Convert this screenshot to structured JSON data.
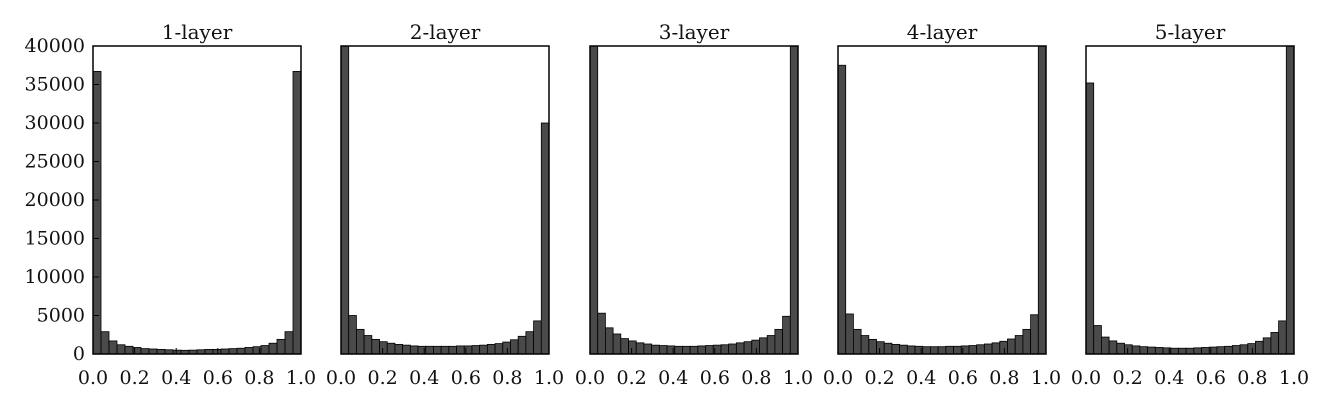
{
  "chart_data": {
    "type": "bar",
    "y_ticks": [
      "0",
      "5000",
      "10000",
      "15000",
      "20000",
      "25000",
      "30000",
      "35000",
      "40000"
    ],
    "x_ticks": [
      "0.0",
      "0.2",
      "0.4",
      "0.6",
      "0.8",
      "1.0"
    ],
    "panels": [
      {
        "title": "1-layer",
        "xlim": [
          0,
          1
        ],
        "ylim": [
          0,
          40000
        ],
        "bin_width": 0.04,
        "values": [
          36700,
          2900,
          1700,
          1200,
          1000,
          850,
          700,
          650,
          600,
          550,
          500,
          480,
          500,
          550,
          600,
          600,
          650,
          700,
          750,
          850,
          950,
          1100,
          1400,
          1900,
          2900,
          36700
        ]
      },
      {
        "title": "2-layer",
        "xlim": [
          0,
          1
        ],
        "ylim": [
          0,
          40000
        ],
        "bin_width": 0.04,
        "values": [
          40000,
          5000,
          3200,
          2400,
          1900,
          1600,
          1400,
          1250,
          1150,
          1050,
          1000,
          1000,
          1000,
          1000,
          1000,
          1050,
          1050,
          1100,
          1150,
          1250,
          1350,
          1550,
          1850,
          2300,
          2900,
          4300,
          30000
        ]
      },
      {
        "title": "3-layer",
        "xlim": [
          0,
          1
        ],
        "ylim": [
          0,
          40000
        ],
        "bin_width": 0.04,
        "values": [
          40000,
          5300,
          3400,
          2600,
          2000,
          1700,
          1450,
          1300,
          1150,
          1100,
          1050,
          1000,
          1000,
          1000,
          1050,
          1100,
          1150,
          1200,
          1300,
          1450,
          1600,
          1800,
          2100,
          2400,
          3200,
          4900,
          40000
        ]
      },
      {
        "title": "4-layer",
        "xlim": [
          0,
          1
        ],
        "ylim": [
          0,
          40000
        ],
        "bin_width": 0.04,
        "values": [
          37500,
          5200,
          3200,
          2400,
          1900,
          1600,
          1400,
          1250,
          1150,
          1050,
          1000,
          950,
          950,
          950,
          1000,
          1000,
          1050,
          1100,
          1200,
          1300,
          1450,
          1650,
          1950,
          2400,
          3200,
          5100,
          40000
        ]
      },
      {
        "title": "5-layer",
        "xlim": [
          0,
          1
        ],
        "ylim": [
          0,
          40000
        ],
        "bin_width": 0.04,
        "values": [
          35200,
          3700,
          2200,
          1700,
          1400,
          1200,
          1050,
          950,
          900,
          850,
          800,
          750,
          750,
          750,
          800,
          850,
          900,
          950,
          1000,
          1100,
          1200,
          1350,
          1650,
          2100,
          2800,
          4300,
          40000
        ]
      }
    ]
  }
}
